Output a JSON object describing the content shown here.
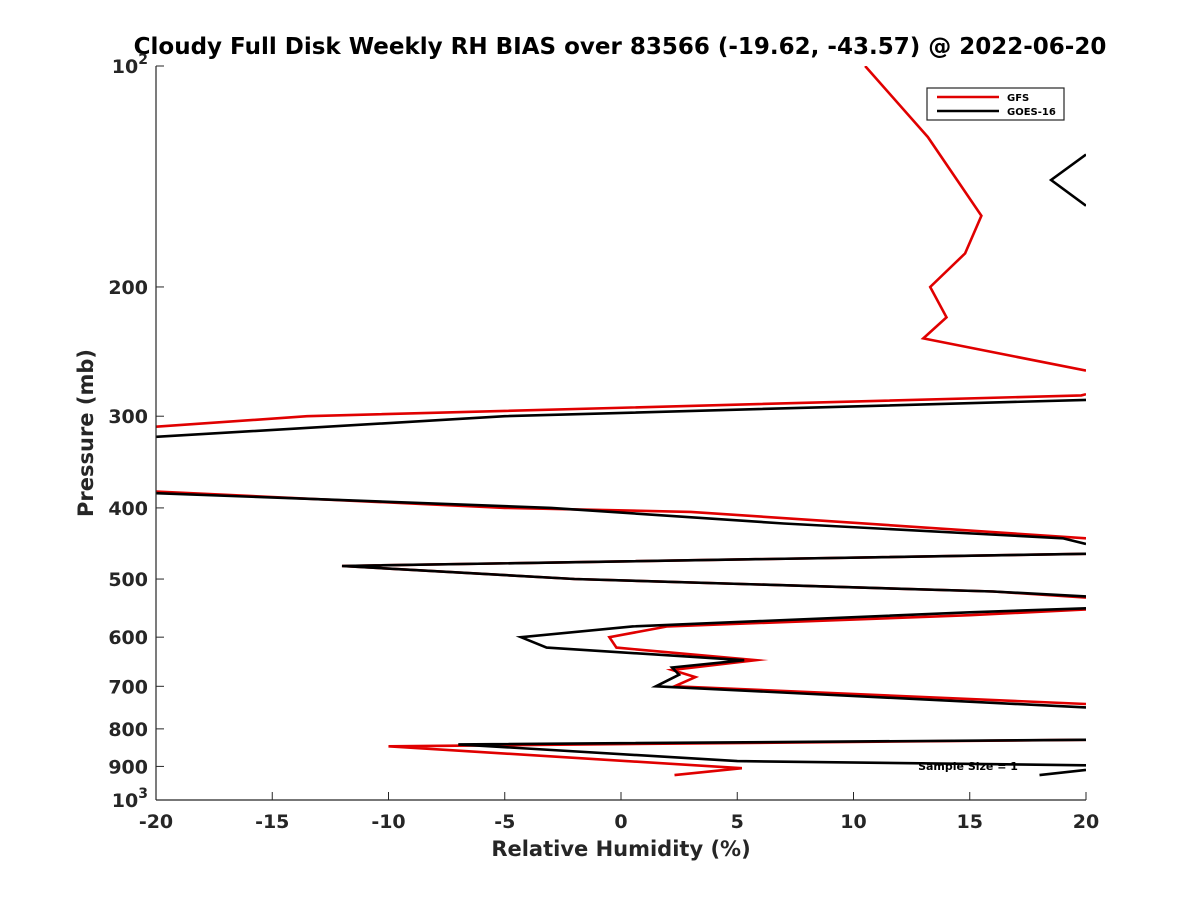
{
  "chart_data": {
    "type": "line",
    "title": "Cloudy Full Disk Weekly RH BIAS over 83566 (-19.62, -43.57) @ 2022-06-20",
    "xlabel": "Relative Humidity (%)",
    "ylabel": "Pressure (mb)",
    "xlim": [
      -20,
      20
    ],
    "ylim": [
      100,
      1000
    ],
    "y_scale": "log",
    "y_reversed": true,
    "x_ticks": [
      -20,
      -15,
      -10,
      -5,
      0,
      5,
      10,
      15,
      20
    ],
    "x_tick_labels": [
      "-20",
      "-15",
      "-10",
      "-5",
      "0",
      "5",
      "10",
      "15",
      "20"
    ],
    "y_ticks": [
      100,
      200,
      300,
      400,
      500,
      600,
      700,
      800,
      900,
      1000
    ],
    "y_tick_labels": [
      {
        "base": "10",
        "exp": "2"
      },
      {
        "base": "200",
        "exp": ""
      },
      {
        "base": "300",
        "exp": ""
      },
      {
        "base": "400",
        "exp": ""
      },
      {
        "base": "500",
        "exp": ""
      },
      {
        "base": "600",
        "exp": ""
      },
      {
        "base": "700",
        "exp": ""
      },
      {
        "base": "800",
        "exp": ""
      },
      {
        "base": "900",
        "exp": ""
      },
      {
        "base": "10",
        "exp": "3"
      }
    ],
    "grid": false,
    "legend_position": "top-right",
    "annotation": "Sample Size = 1",
    "series": [
      {
        "name": "GFS",
        "color": "#e00000",
        "segments": [
          [
            [
              10.5,
              100
            ],
            [
              13.2,
              125
            ],
            [
              15.5,
              160
            ],
            [
              14.8,
              180
            ],
            [
              13.3,
              200
            ],
            [
              14,
              220
            ],
            [
              13,
              235
            ],
            [
              20,
              260
            ]
          ],
          [
            [
              20,
              280
            ],
            [
              19.8,
              281
            ],
            [
              -13.5,
              300
            ],
            [
              -20,
              310
            ]
          ],
          [
            [
              -20,
              380
            ],
            [
              -5,
              400
            ],
            [
              3,
              405
            ],
            [
              20,
              440
            ]
          ],
          [
            [
              20,
              462
            ],
            [
              -12,
              480
            ],
            [
              -2,
              500
            ],
            [
              16,
              520
            ],
            [
              20,
              530
            ]
          ],
          [
            [
              20,
              550
            ],
            [
              15,
              560
            ],
            [
              2,
              580
            ],
            [
              -0.5,
              600
            ],
            [
              -0.2,
              620
            ],
            [
              5.8,
              645
            ],
            [
              2.2,
              665
            ],
            [
              3.2,
              680
            ],
            [
              2.3,
              700
            ],
            [
              20,
              740
            ]
          ],
          [
            [
              20,
              828
            ],
            [
              -10,
              845
            ],
            [
              5.2,
              905
            ],
            [
              2.3,
              925
            ]
          ]
        ]
      },
      {
        "name": "GOES-16",
        "color": "#000000",
        "segments": [
          [
            [
              20,
              132
            ],
            [
              18.5,
              143
            ],
            [
              20,
              155
            ]
          ],
          [
            [
              20,
              285
            ],
            [
              -5,
              300
            ],
            [
              -20,
              320
            ]
          ],
          [
            [
              -20,
              382
            ],
            [
              -3,
              400
            ],
            [
              7,
              420
            ],
            [
              19,
              440
            ],
            [
              20,
              448
            ]
          ],
          [
            [
              20,
              462
            ],
            [
              -12,
              480
            ],
            [
              -2,
              500
            ],
            [
              16,
              520
            ],
            [
              20,
              528
            ]
          ],
          [
            [
              20,
              548
            ],
            [
              15,
              555
            ],
            [
              0.5,
              580
            ],
            [
              -4.3,
              600
            ],
            [
              -3.2,
              620
            ],
            [
              5.3,
              645
            ],
            [
              2.2,
              660
            ],
            [
              2.5,
              675
            ],
            [
              1.5,
              700
            ],
            [
              20,
              748
            ]
          ],
          [
            [
              20,
              828
            ],
            [
              -7,
              840
            ],
            [
              5,
              885
            ],
            [
              20,
              897
            ]
          ],
          [
            [
              20,
              910
            ],
            [
              18,
              925
            ]
          ]
        ]
      }
    ]
  },
  "colors": {
    "gfs": "#e00000",
    "goes16": "#000000",
    "axis": "#262626",
    "background": "#ffffff"
  }
}
